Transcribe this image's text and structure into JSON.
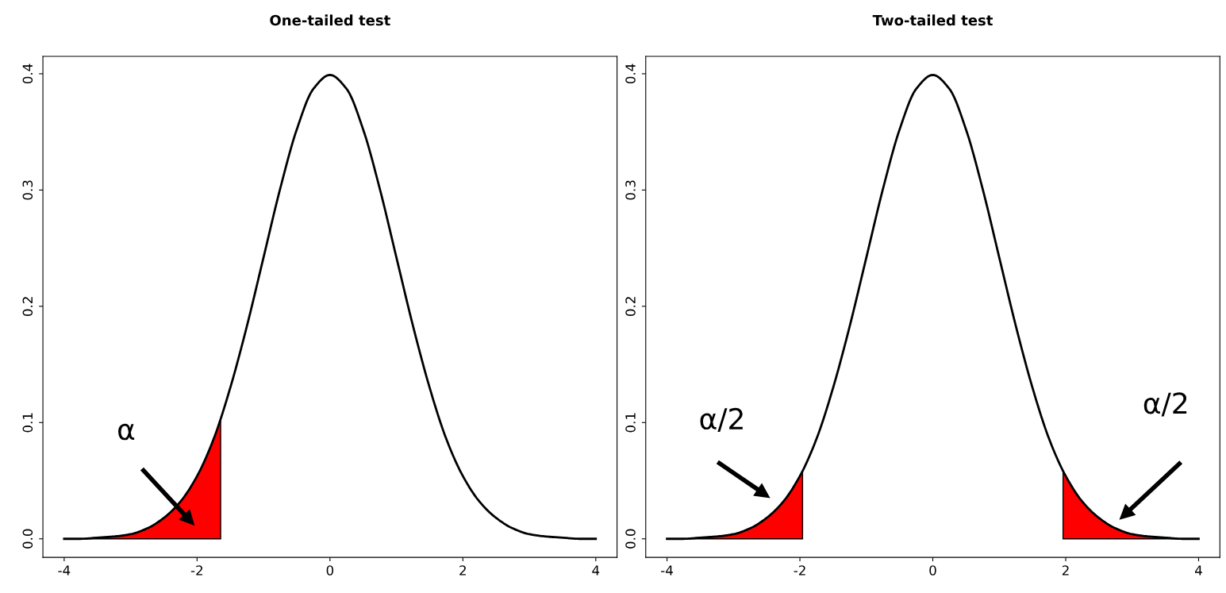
{
  "chart_data": [
    {
      "type": "line",
      "title": "One-tailed test",
      "xlim": [
        -4.32,
        4.32
      ],
      "ylim": [
        -0.016,
        0.415
      ],
      "xticks": [
        -4,
        -2,
        0,
        2,
        4
      ],
      "yticks": [
        {
          "value": 0,
          "label": "0.0"
        },
        0.1,
        0.2,
        0.3,
        0.4
      ],
      "grid": false,
      "legend": false,
      "series": [
        {
          "type": "area",
          "color": "#ff0000",
          "x": [
            -4,
            -3.75,
            -3.5,
            -3.25,
            -3,
            -2.75,
            -2.5,
            -2.25,
            -2,
            -1.75,
            -1.645
          ],
          "values": [
            0.0,
            0.0,
            0.001,
            0.002,
            0.004,
            0.009,
            0.018,
            0.032,
            0.054,
            0.086,
            0.103
          ]
        },
        {
          "color": "#000000",
          "x": [
            -4,
            -3.75,
            -3.5,
            -3.25,
            -3,
            -2.75,
            -2.5,
            -2.25,
            -2,
            -1.75,
            -1.5,
            -1.25,
            -1,
            -0.75,
            -0.5,
            -0.25,
            0,
            0.25,
            0.5,
            0.75,
            1,
            1.25,
            1.5,
            1.75,
            2,
            2.25,
            2.5,
            2.75,
            3,
            3.25,
            3.5,
            3.75,
            4
          ],
          "values": [
            0.0,
            0.0,
            0.001,
            0.002,
            0.004,
            0.009,
            0.018,
            0.032,
            0.054,
            0.086,
            0.13,
            0.183,
            0.242,
            0.301,
            0.352,
            0.387,
            0.399,
            0.387,
            0.352,
            0.301,
            0.242,
            0.183,
            0.13,
            0.086,
            0.054,
            0.032,
            0.018,
            0.009,
            0.004,
            0.002,
            0.001,
            0.0,
            0.0
          ]
        }
      ],
      "annotations": [
        "α"
      ]
    },
    {
      "type": "line",
      "title": "Two-tailed test",
      "xlim": [
        -4.32,
        4.32
      ],
      "ylim": [
        -0.016,
        0.415
      ],
      "xticks": [
        -4,
        -2,
        0,
        2,
        4
      ],
      "yticks": [
        {
          "value": 0,
          "label": "0.0"
        },
        0.1,
        0.2,
        0.3,
        0.4
      ],
      "grid": false,
      "legend": false,
      "series": [
        {
          "type": "area",
          "color": "#ff0000",
          "x": [
            -4,
            -3.75,
            -3.5,
            -3.25,
            -3,
            -2.75,
            -2.5,
            -2.25,
            -1.96
          ],
          "values": [
            0.0,
            0.0,
            0.001,
            0.002,
            0.004,
            0.009,
            0.018,
            0.032,
            0.058
          ]
        },
        {
          "type": "area",
          "color": "#ff0000",
          "x": [
            1.96,
            2.25,
            2.5,
            2.75,
            3,
            3.25,
            3.5,
            3.75,
            4
          ],
          "values": [
            0.058,
            0.032,
            0.018,
            0.009,
            0.004,
            0.002,
            0.001,
            0.0,
            0.0
          ]
        },
        {
          "color": "#000000",
          "x": [
            -4,
            -3.75,
            -3.5,
            -3.25,
            -3,
            -2.75,
            -2.5,
            -2.25,
            -2,
            -1.75,
            -1.5,
            -1.25,
            -1,
            -0.75,
            -0.5,
            -0.25,
            0,
            0.25,
            0.5,
            0.75,
            1,
            1.25,
            1.5,
            1.75,
            2,
            2.25,
            2.5,
            2.75,
            3,
            3.25,
            3.5,
            3.75,
            4
          ],
          "values": [
            0.0,
            0.0,
            0.001,
            0.002,
            0.004,
            0.009,
            0.018,
            0.032,
            0.054,
            0.086,
            0.13,
            0.183,
            0.242,
            0.301,
            0.352,
            0.387,
            0.399,
            0.387,
            0.352,
            0.301,
            0.242,
            0.183,
            0.13,
            0.086,
            0.054,
            0.032,
            0.018,
            0.009,
            0.004,
            0.002,
            0.001,
            0.0,
            0.0
          ]
        }
      ],
      "annotations": [
        "α/2",
        "α/2"
      ]
    }
  ]
}
